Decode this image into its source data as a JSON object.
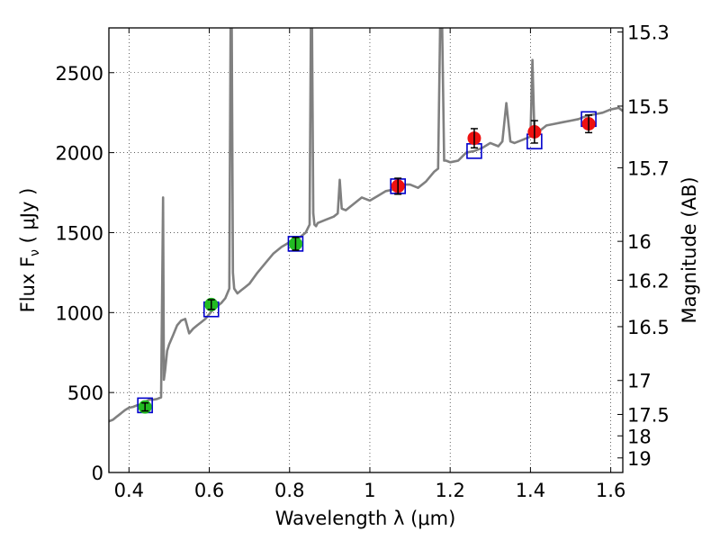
{
  "chart_data": {
    "type": "scatter",
    "xlabel": "Wavelength  λ (μm)",
    "ylabel": "Flux  F_ν  ( μJy )",
    "ylabel_right": "Magnitude (AB)",
    "xlim": [
      0.35,
      1.63
    ],
    "ylim": [
      0,
      2780
    ],
    "grid": true,
    "x_ticks": [
      0.4,
      0.6,
      0.8,
      1.0,
      1.2,
      1.4,
      1.6
    ],
    "x_tick_labels": [
      "0.4",
      "0.6",
      "0.8",
      "1",
      "1.2",
      "1.4",
      "1.6"
    ],
    "y_ticks": [
      0,
      500,
      1000,
      1500,
      2000,
      2500
    ],
    "y_tick_labels": [
      "0",
      "500",
      "1000",
      "1500",
      "2000",
      "2500"
    ],
    "right_ticks": [
      "15.3",
      "15.5",
      "15.7",
      "16",
      "16.2",
      "16.5",
      "17",
      "17.5",
      "18",
      "19"
    ],
    "colors": {
      "model": "#808080",
      "optical": "#22bb22",
      "nir": "#ee1111",
      "synthetic": "#0000cc",
      "errorbar": "#000000"
    },
    "series": [
      {
        "style": "line",
        "x": [
          0.35,
          0.36,
          0.37,
          0.38,
          0.39,
          0.4,
          0.41,
          0.42,
          0.43,
          0.44,
          0.45,
          0.46,
          0.47,
          0.48,
          0.485,
          0.487,
          0.49,
          0.495,
          0.5,
          0.51,
          0.52,
          0.53,
          0.54,
          0.55,
          0.56,
          0.57,
          0.58,
          0.59,
          0.6,
          0.61,
          0.62,
          0.63,
          0.64,
          0.65,
          0.653,
          0.656,
          0.659,
          0.662,
          0.67,
          0.68,
          0.69,
          0.7,
          0.72,
          0.74,
          0.76,
          0.78,
          0.8,
          0.82,
          0.84,
          0.85,
          0.853,
          0.856,
          0.859,
          0.862,
          0.866,
          0.87,
          0.89,
          0.91,
          0.92,
          0.925,
          0.93,
          0.94,
          0.96,
          0.98,
          1.0,
          1.02,
          1.04,
          1.06,
          1.08,
          1.1,
          1.12,
          1.14,
          1.16,
          1.17,
          1.175,
          1.18,
          1.185,
          1.19,
          1.2,
          1.22,
          1.24,
          1.26,
          1.28,
          1.3,
          1.32,
          1.33,
          1.34,
          1.35,
          1.36,
          1.38,
          1.4,
          1.405,
          1.41,
          1.415,
          1.42,
          1.44,
          1.46,
          1.48,
          1.5,
          1.52,
          1.54,
          1.56,
          1.58,
          1.6,
          1.62,
          1.63
        ],
        "y": [
          320,
          330,
          350,
          370,
          390,
          405,
          410,
          420,
          425,
          440,
          455,
          455,
          460,
          470,
          1720,
          580,
          640,
          760,
          800,
          860,
          920,
          950,
          960,
          870,
          900,
          920,
          940,
          960,
          990,
          1020,
          1040,
          1060,
          1090,
          1150,
          2780,
          2780,
          1250,
          1150,
          1120,
          1140,
          1160,
          1180,
          1250,
          1310,
          1370,
          1410,
          1440,
          1460,
          1500,
          1550,
          2780,
          2780,
          1620,
          1550,
          1540,
          1560,
          1580,
          1600,
          1620,
          1830,
          1650,
          1640,
          1680,
          1720,
          1700,
          1730,
          1760,
          1770,
          1800,
          1800,
          1780,
          1820,
          1880,
          1900,
          2780,
          2780,
          1950,
          1950,
          1940,
          1950,
          2000,
          2010,
          2030,
          2060,
          2040,
          2070,
          2310,
          2070,
          2060,
          2080,
          2100,
          2580,
          2100,
          2120,
          2130,
          2170,
          2180,
          2190,
          2200,
          2210,
          2230,
          2240,
          2250,
          2270,
          2280,
          2260
        ]
      },
      {
        "style": "synthetic-squares",
        "x": [
          0.44,
          0.605,
          0.815,
          1.07,
          1.26,
          1.41,
          1.545
        ],
        "y": [
          420,
          1020,
          1430,
          1790,
          2010,
          2070,
          2210
        ]
      },
      {
        "style": "optical-points",
        "x": [
          0.44,
          0.605,
          0.815
        ],
        "y": [
          410,
          1050,
          1430
        ],
        "err": [
          25,
          30,
          40
        ]
      },
      {
        "style": "nir-points",
        "x": [
          1.07,
          1.26,
          1.41,
          1.545
        ],
        "y": [
          1790,
          2090,
          2130,
          2180
        ],
        "err": [
          50,
          60,
          70,
          55
        ]
      }
    ]
  }
}
